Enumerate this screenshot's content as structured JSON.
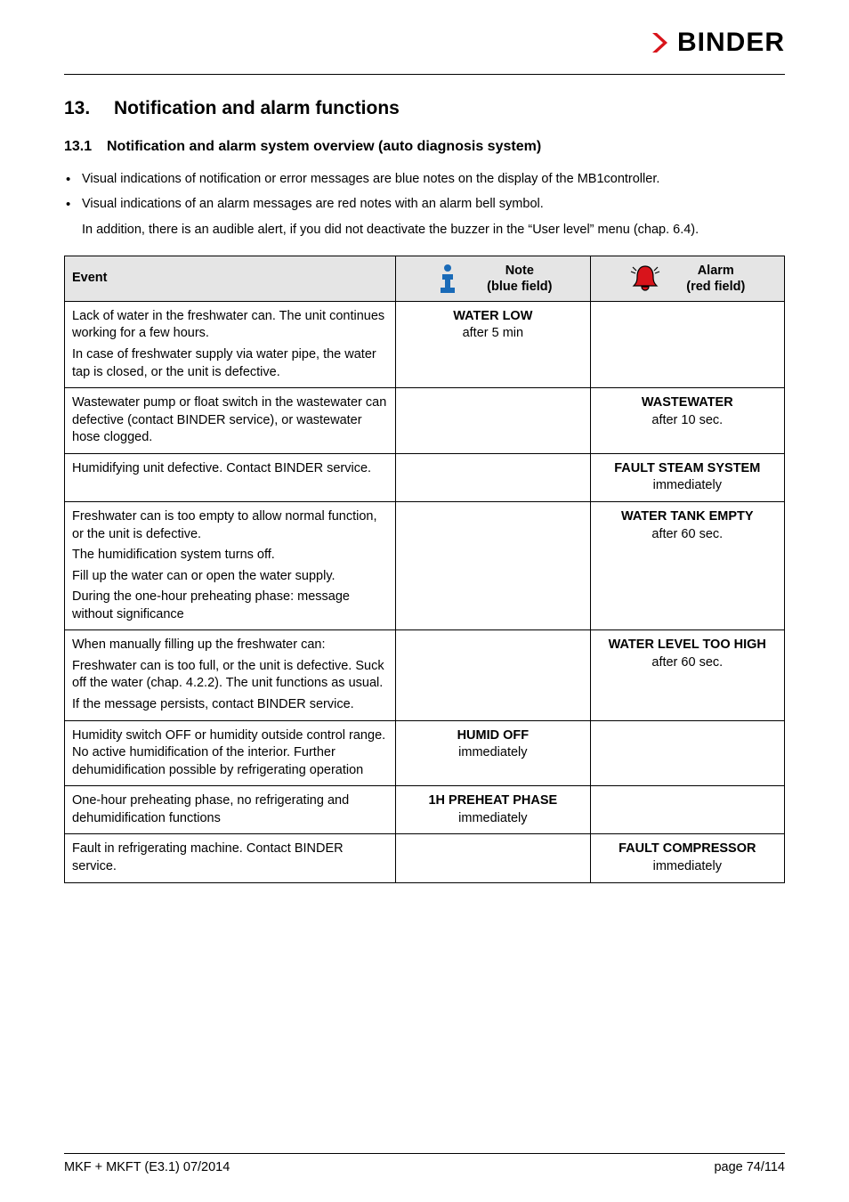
{
  "brand": "BINDER",
  "icons": {
    "logo_chevron_fill": "#d8141b",
    "info_color": "#1a6bb8",
    "bell_fill": "#d8141b",
    "bell_stroke": "#000000"
  },
  "section": {
    "number": "13.",
    "title": "Notification and alarm functions"
  },
  "subsection": {
    "number": "13.1",
    "title": "Notification and alarm system overview (auto diagnosis system)"
  },
  "bullets": [
    "Visual indications of notification or error messages are blue notes on the display of the MB1controller.",
    "Visual indications of an alarm messages are red notes with an alarm bell symbol."
  ],
  "post_bullets_para": "In addition, there is an audible alert, if you did not deactivate the buzzer in the “User level” menu (chap. 6.4).",
  "table": {
    "headers": {
      "event": "Event",
      "note_l1": "Note",
      "note_l2": "(blue field)",
      "alarm_l1": "Alarm",
      "alarm_l2": "(red field)"
    },
    "rows": [
      {
        "event_paras": [
          "Lack of water in the freshwater can. The unit continues working for a few hours.",
          "In case of freshwater supply via water pipe, the water tap is closed, or the unit is defective."
        ],
        "note_l1": "WATER LOW",
        "note_l2": "after 5 min",
        "alarm_l1": "",
        "alarm_l2": ""
      },
      {
        "event_paras": [
          "Wastewater pump or float switch in the wastewater can defective (contact BINDER service), or wastewater hose clogged."
        ],
        "note_l1": "",
        "note_l2": "",
        "alarm_l1": "WASTEWATER",
        "alarm_l2": "after 10 sec."
      },
      {
        "event_paras": [
          "Humidifying unit defective. Contact BINDER service."
        ],
        "note_l1": "",
        "note_l2": "",
        "alarm_l1": "FAULT STEAM SYSTEM",
        "alarm_l2": "immediately"
      },
      {
        "event_paras": [
          "Freshwater can is too empty to allow normal function, or the unit is defective.",
          "The humidification system turns off.",
          "Fill up the water can or open the water supply.",
          "During the one-hour preheating phase: message without significance"
        ],
        "note_l1": "",
        "note_l2": "",
        "alarm_l1": "WATER TANK EMPTY",
        "alarm_l2": "after 60 sec."
      },
      {
        "event_paras": [
          "When manually filling up the freshwater can:",
          "Freshwater can is too full, or the unit is defective. Suck off the water (chap. 4.2.2). The unit functions as usual.",
          "If the message persists, contact BINDER service."
        ],
        "note_l1": "",
        "note_l2": "",
        "alarm_l1": "WATER LEVEL TOO HIGH",
        "alarm_l2": "after 60 sec."
      },
      {
        "event_paras": [
          "Humidity switch OFF or humidity outside control range. No active humidification of the interior. Further dehumidification possible by refrigerating operation"
        ],
        "note_l1": "HUMID OFF",
        "note_l2": "immediately",
        "alarm_l1": "",
        "alarm_l2": ""
      },
      {
        "event_paras": [
          "One-hour preheating phase, no refrigerating and dehumidification functions"
        ],
        "note_l1": "1H PREHEAT PHASE",
        "note_l2": "immediately",
        "alarm_l1": "",
        "alarm_l2": ""
      },
      {
        "event_paras": [
          "Fault in refrigerating machine. Contact BINDER service."
        ],
        "note_l1": "",
        "note_l2": "",
        "alarm_l1": "FAULT COMPRESSOR",
        "alarm_l2": "immediately"
      }
    ]
  },
  "footer": {
    "left": "MKF + MKFT (E3.1) 07/2014",
    "right": "page 74/114"
  }
}
